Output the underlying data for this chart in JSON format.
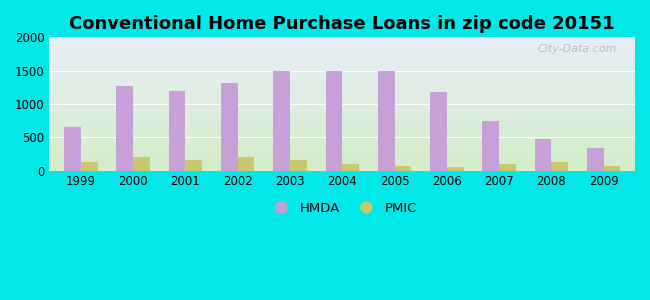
{
  "title": "Conventional Home Purchase Loans in zip code 20151",
  "years": [
    1999,
    2000,
    2001,
    2002,
    2003,
    2004,
    2005,
    2006,
    2007,
    2008,
    2009
  ],
  "hmda": [
    650,
    1270,
    1200,
    1320,
    1490,
    1500,
    1490,
    1175,
    745,
    475,
    340
  ],
  "pmic": [
    130,
    210,
    155,
    200,
    155,
    95,
    75,
    55,
    95,
    130,
    75
  ],
  "hmda_color": "#c8a0d8",
  "pmic_color": "#c8c870",
  "background_color": "#00e8e8",
  "plot_bg_top": "#e8eef8",
  "plot_bg_bottom": "#d4ecc8",
  "ylim": [
    0,
    2000
  ],
  "yticks": [
    0,
    500,
    1000,
    1500,
    2000
  ],
  "watermark": "City-Data.com",
  "legend_hmda": "HMDA",
  "legend_pmic": "PMIC",
  "bar_width": 0.32,
  "title_fontsize": 13,
  "tick_fontsize": 8.5,
  "legend_fontsize": 9.5
}
